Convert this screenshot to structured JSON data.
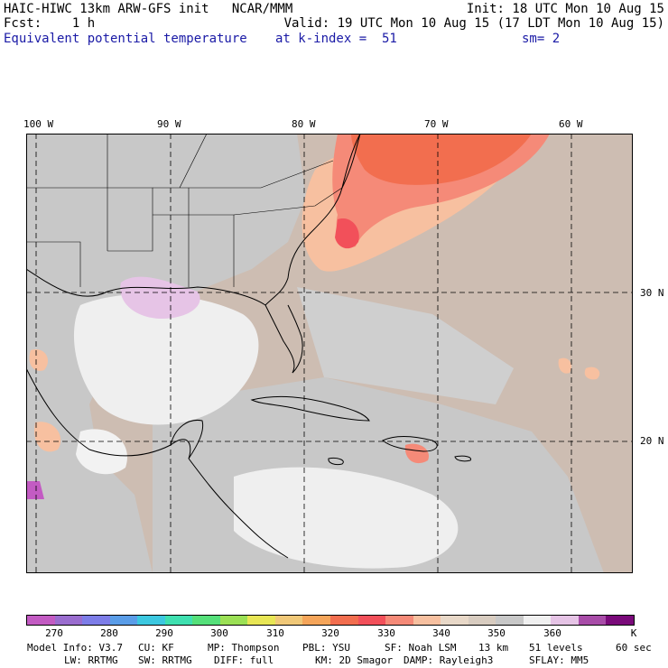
{
  "header": {
    "left1": "HAIC-HIWC 13km ARW-GFS init   NCAR/MMM",
    "left2": "Fcst:    1 h",
    "left3": "Equivalent potential temperature",
    "right1": "Init: 18 UTC Mon 10 Aug 15",
    "right2": "Valid: 19 UTC Mon 10 Aug 15 (17 LDT Mon 10 Aug 15)",
    "right3a": "at k-index =  51",
    "right3b": "sm= 2"
  },
  "map": {
    "lon_labels": [
      "100 W",
      "90 W",
      "80 W",
      "70 W",
      "60 W"
    ],
    "lat_labels": [
      "30 N",
      "20 N"
    ]
  },
  "colorbar": {
    "colors": [
      "#c35bc3",
      "#9a6dcf",
      "#7d7de8",
      "#5a9de8",
      "#3cc8e0",
      "#3fe0b0",
      "#55e07a",
      "#9be055",
      "#e8e655",
      "#f0c878",
      "#f5a55a",
      "#f26e4f",
      "#f2505a",
      "#f58a78",
      "#f7c0a0",
      "#e8d8c8",
      "#d8ccc0",
      "#c8c8c8",
      "#f0f0f0",
      "#e6c4e6",
      "#a84ca8",
      "#7a0a7a"
    ],
    "tick_labels": [
      "270",
      "280",
      "290",
      "300",
      "310",
      "320",
      "330",
      "340",
      "350",
      "360"
    ],
    "units": "K"
  },
  "footer": {
    "line1": [
      "Model Info: V3.7",
      "CU: KF",
      "MP: Thompson",
      "PBL: YSU",
      "SF: Noah LSM",
      "13 km",
      "51 levels",
      "60 sec"
    ],
    "line2": [
      "LW: RRTMG",
      "SW: RRTMG",
      "DIFF: full",
      "KM: 2D Smagor",
      "DAMP: Rayleigh3",
      "SFLAY: MM5"
    ]
  }
}
